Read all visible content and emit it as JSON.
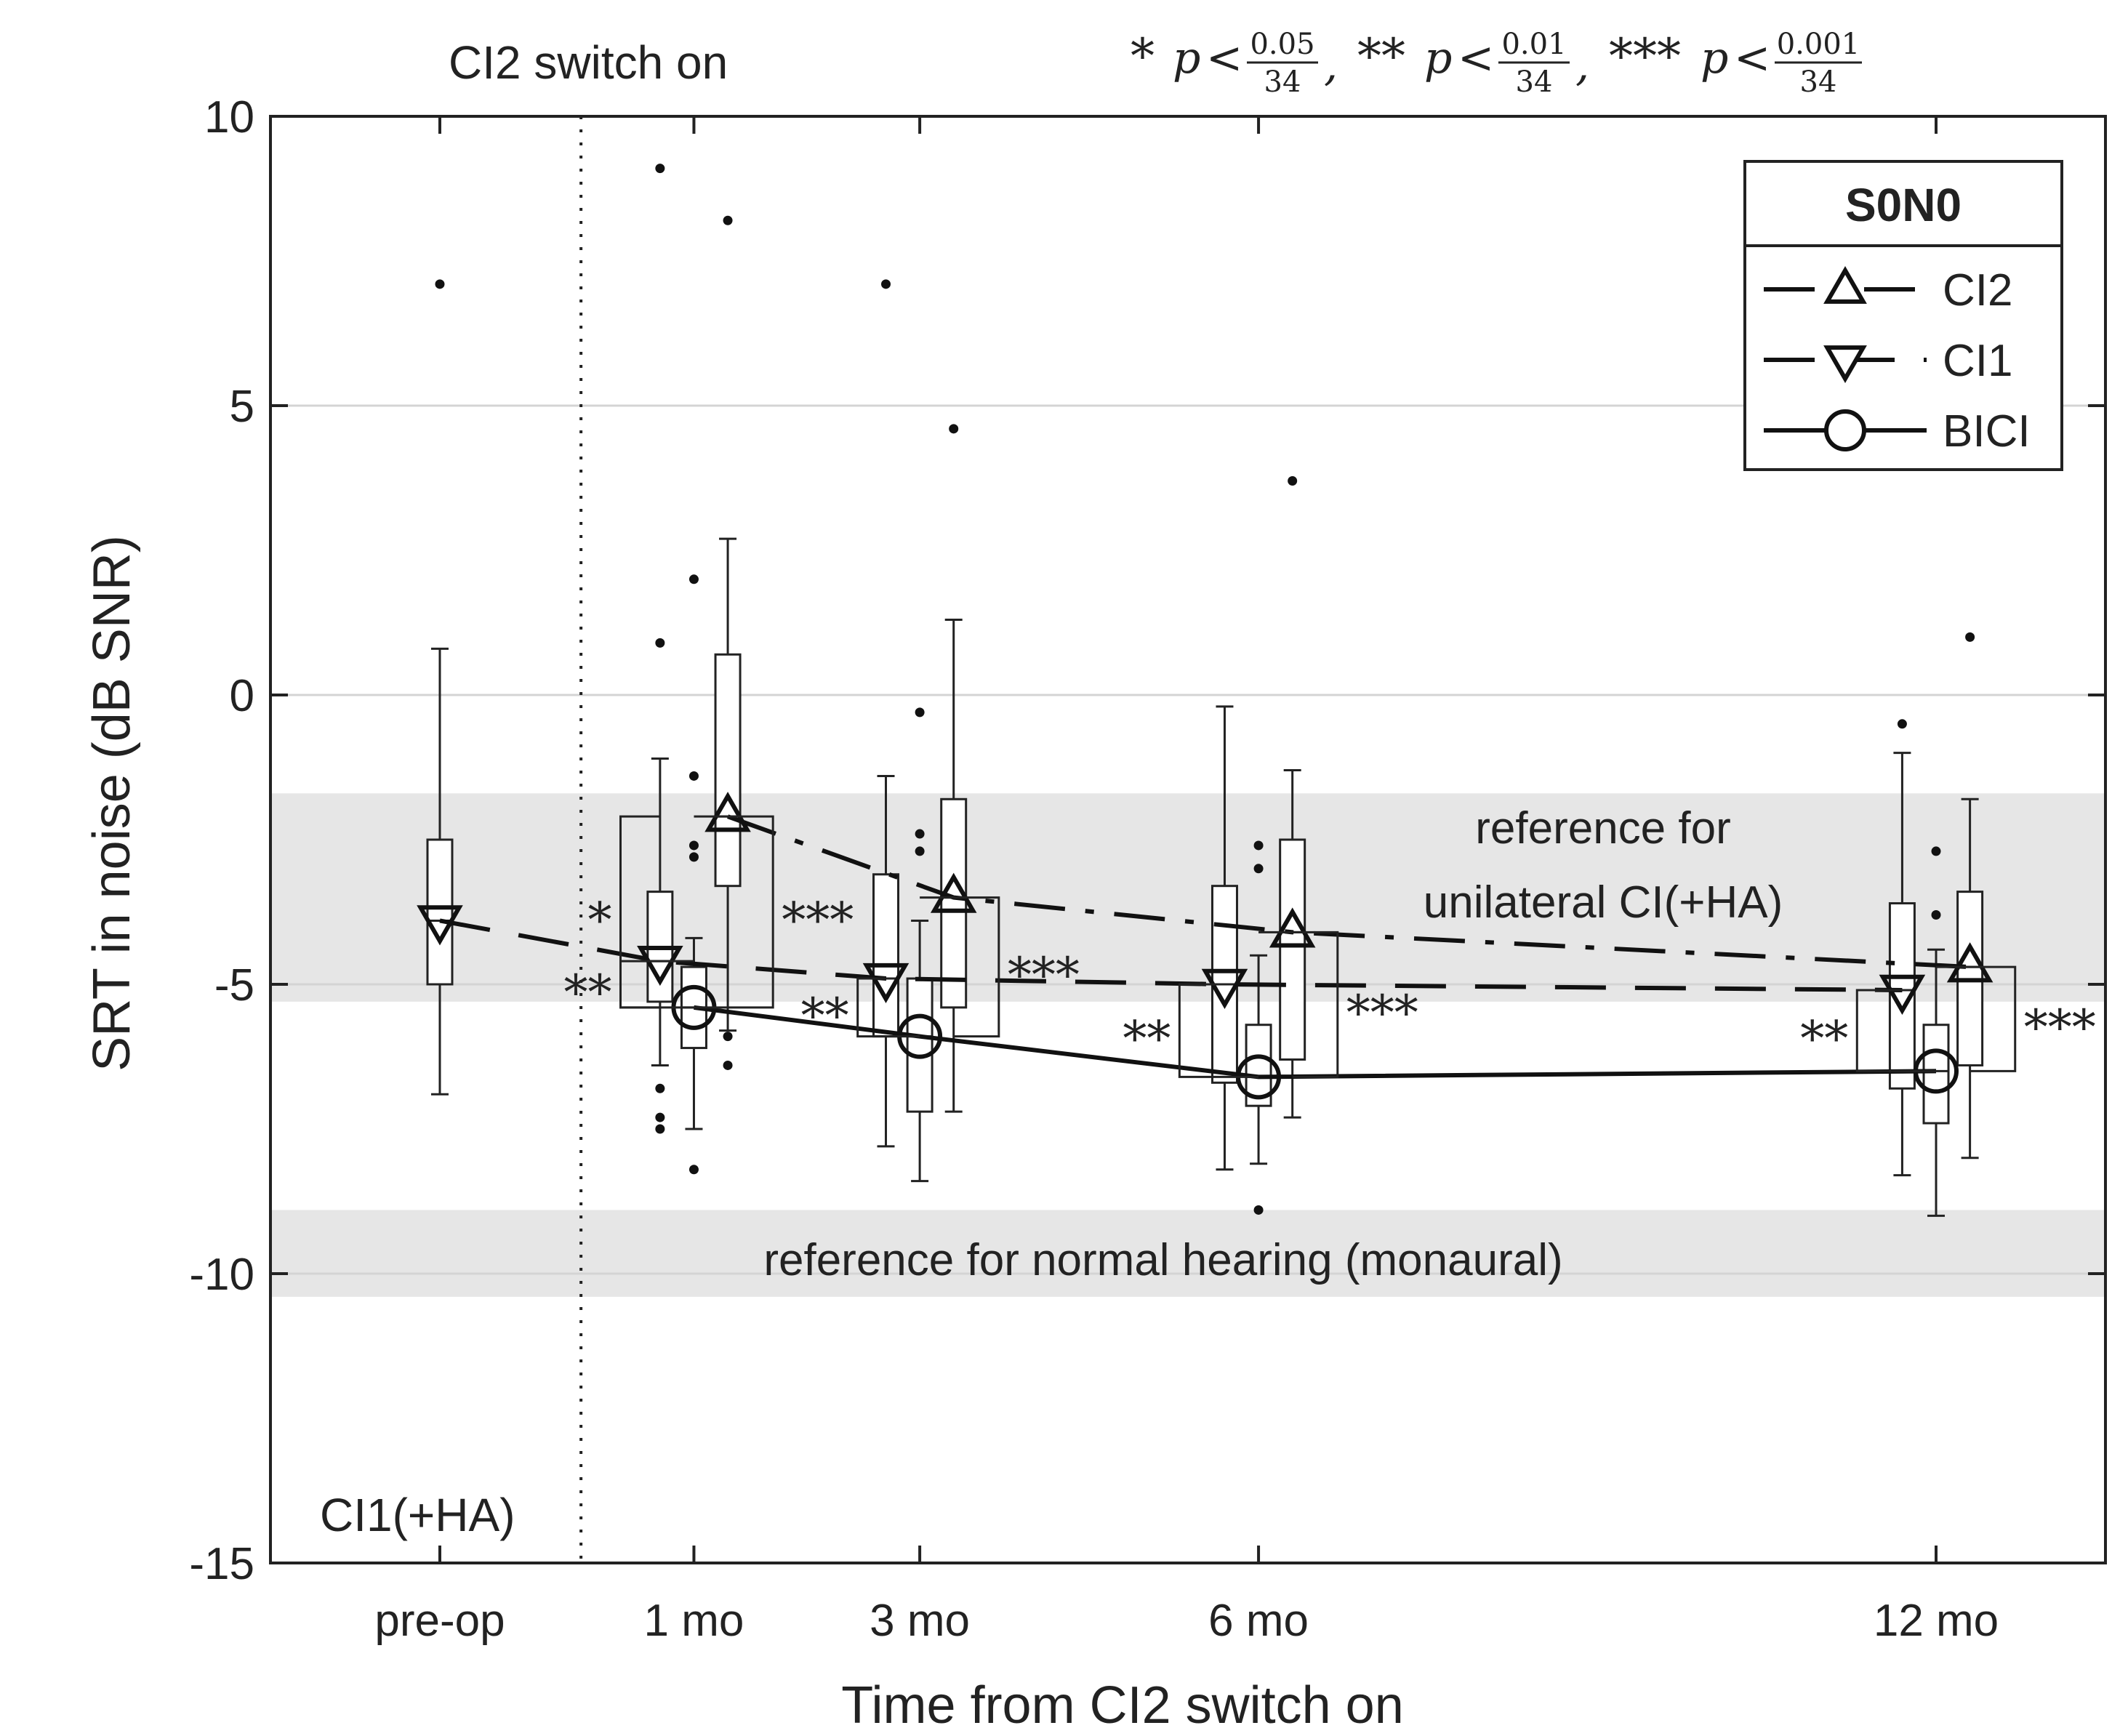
{
  "chart_data": {
    "type": "box",
    "xlabel": "Time from CI2 switch on",
    "ylabel": "SRT in noise (dB SNR)",
    "ylim": [
      -15,
      10
    ],
    "yticks": [
      -15,
      -10,
      -5,
      0,
      5,
      10
    ],
    "x_positions": {
      "pre-op": -1.25,
      "1 mo": 1,
      "3 mo": 3,
      "6 mo": 6,
      "12 mo": 12
    },
    "xlim": [
      -2.75,
      13.5
    ],
    "xtick_labels": [
      "pre-op",
      "1 mo",
      "3 mo",
      "6 mo",
      "12 mo"
    ],
    "switch_on_x": 0,
    "switch_on_label": "CI2 switch on",
    "pre_label": "CI1(+HA)",
    "grid": "horizontal",
    "legend": {
      "title": "S0N0",
      "position": "top-right",
      "entries": [
        {
          "name": "CI2",
          "marker": "triangle-up",
          "dash": "dashdot"
        },
        {
          "name": "CI1",
          "marker": "triangle-down",
          "dash": "dashed"
        },
        {
          "name": "BICI",
          "marker": "circle",
          "dash": "solid"
        }
      ]
    },
    "reference_bands": [
      {
        "label_lines": [
          "reference for",
          "unilateral CI(+HA)"
        ],
        "y_range": [
          -5.3,
          -1.7
        ]
      },
      {
        "label_lines": [
          "reference for normal hearing (monaural)"
        ],
        "y_range": [
          -10.4,
          -8.9
        ]
      }
    ],
    "significance_note": {
      "levels": [
        {
          "stars": "*",
          "num": "0.05",
          "den": "34"
        },
        {
          "stars": "**",
          "num": "0.01",
          "den": "34"
        },
        {
          "stars": "***",
          "num": "0.001",
          "den": "34"
        }
      ]
    },
    "series": [
      {
        "name": "CI2",
        "line": {
          "x": [
            1.3,
            3.3,
            6.3,
            12.3
          ],
          "y": [
            -2.1,
            -3.5,
            -4.1,
            -4.7
          ]
        },
        "boxes": [
          {
            "x": 1.3,
            "q1": -3.3,
            "median": -2.1,
            "q3": 0.7,
            "whisker_low": -5.8,
            "whisker_high": 2.7,
            "outliers": [
              8.2,
              -5.9,
              -6.4
            ]
          },
          {
            "x": 3.3,
            "q1": -5.4,
            "median": -3.5,
            "q3": -1.8,
            "whisker_low": -7.2,
            "whisker_high": 1.3,
            "outliers": [
              4.6
            ]
          },
          {
            "x": 6.3,
            "q1": -6.3,
            "median": -4.1,
            "q3": -2.5,
            "whisker_low": -7.3,
            "whisker_high": -1.3,
            "outliers": [
              3.7
            ]
          },
          {
            "x": 12.3,
            "q1": -6.4,
            "median": -4.7,
            "q3": -3.4,
            "whisker_low": -8.0,
            "whisker_high": -1.8,
            "outliers": [
              1.0
            ]
          }
        ]
      },
      {
        "name": "CI1",
        "line": {
          "x": [
            -1.25,
            0.7,
            2.7,
            5.7,
            11.7
          ],
          "y": [
            -3.9,
            -4.6,
            -4.9,
            -5.0,
            -5.1
          ]
        },
        "boxes": [
          {
            "x": -1.25,
            "q1": -5.0,
            "median": -3.9,
            "q3": -2.5,
            "whisker_low": -6.9,
            "whisker_high": 0.8,
            "outliers": [
              7.1
            ]
          },
          {
            "x": 0.7,
            "q1": -5.3,
            "median": -4.6,
            "q3": -3.4,
            "whisker_low": -6.4,
            "whisker_high": -1.1,
            "outliers": [
              9.1,
              0.9,
              -6.8,
              -7.3,
              -7.5
            ]
          },
          {
            "x": 2.7,
            "q1": -5.9,
            "median": -4.9,
            "q3": -3.1,
            "whisker_low": -7.8,
            "whisker_high": -1.4,
            "outliers": [
              7.1
            ]
          },
          {
            "x": 5.7,
            "q1": -6.7,
            "median": -5.0,
            "q3": -3.3,
            "whisker_low": -8.2,
            "whisker_high": -0.2,
            "outliers": []
          },
          {
            "x": 11.7,
            "q1": -6.8,
            "median": -5.1,
            "q3": -3.6,
            "whisker_low": -8.3,
            "whisker_high": -1.0,
            "outliers": [
              -0.5
            ]
          }
        ]
      },
      {
        "name": "BICI",
        "line": {
          "x": [
            1,
            3,
            6,
            12
          ],
          "y": [
            -5.4,
            -5.9,
            -6.6,
            -6.5
          ]
        },
        "boxes": [
          {
            "x": 1,
            "q1": -6.1,
            "median": -5.4,
            "q3": -4.7,
            "whisker_low": -7.5,
            "whisker_high": -4.2,
            "outliers": [
              2.0,
              -1.4,
              -2.6,
              -2.8,
              -8.2
            ]
          },
          {
            "x": 3,
            "q1": -7.2,
            "median": -5.9,
            "q3": -4.9,
            "whisker_low": -8.4,
            "whisker_high": -3.9,
            "outliers": [
              -0.3,
              -2.4,
              -2.7
            ]
          },
          {
            "x": 6,
            "q1": -7.1,
            "median": -6.6,
            "q3": -5.7,
            "whisker_low": -8.1,
            "whisker_high": -4.5,
            "outliers": [
              -2.6,
              -3.0,
              -8.9
            ]
          },
          {
            "x": 12,
            "q1": -7.4,
            "median": -6.5,
            "q3": -5.7,
            "whisker_low": -9.0,
            "whisker_high": -4.4,
            "outliers": [
              -2.7,
              -3.8
            ]
          }
        ]
      }
    ],
    "significance_brackets": [
      {
        "x_from": 0.7,
        "x_to": 1.3,
        "x_side": 0.35,
        "y_top": -2.1,
        "y_bottom": -5.4,
        "stars": "*"
      },
      {
        "x_from": 1.0,
        "x_to": 1.3,
        "x_side": 1.7,
        "y_top": -2.1,
        "y_bottom": -5.4,
        "stars": "***"
      },
      {
        "x_from": 1.0,
        "x_to": 0.7,
        "x_side": 0.35,
        "y_top": -4.6,
        "y_bottom": -5.4,
        "stars": "**"
      },
      {
        "x_from": 2.7,
        "x_to": 3.0,
        "x_side": 2.45,
        "y_top": -4.9,
        "y_bottom": -5.9,
        "stars": "**"
      },
      {
        "x_from": 3.0,
        "x_to": 3.3,
        "x_side": 3.7,
        "y_top": -3.5,
        "y_bottom": -5.9,
        "stars": "***"
      },
      {
        "x_from": 5.7,
        "x_to": 6.0,
        "x_side": 5.3,
        "y_top": -5.0,
        "y_bottom": -6.6,
        "stars": "**"
      },
      {
        "x_from": 6.0,
        "x_to": 6.3,
        "x_side": 6.7,
        "y_top": -4.1,
        "y_bottom": -6.6,
        "stars": "***"
      },
      {
        "x_from": 11.7,
        "x_to": 12.0,
        "x_side": 11.3,
        "y_top": -5.1,
        "y_bottom": -6.5,
        "stars": "**"
      },
      {
        "x_from": 12.0,
        "x_to": 12.3,
        "x_side": 12.7,
        "y_top": -4.7,
        "y_bottom": -6.5,
        "stars": "***"
      }
    ]
  }
}
